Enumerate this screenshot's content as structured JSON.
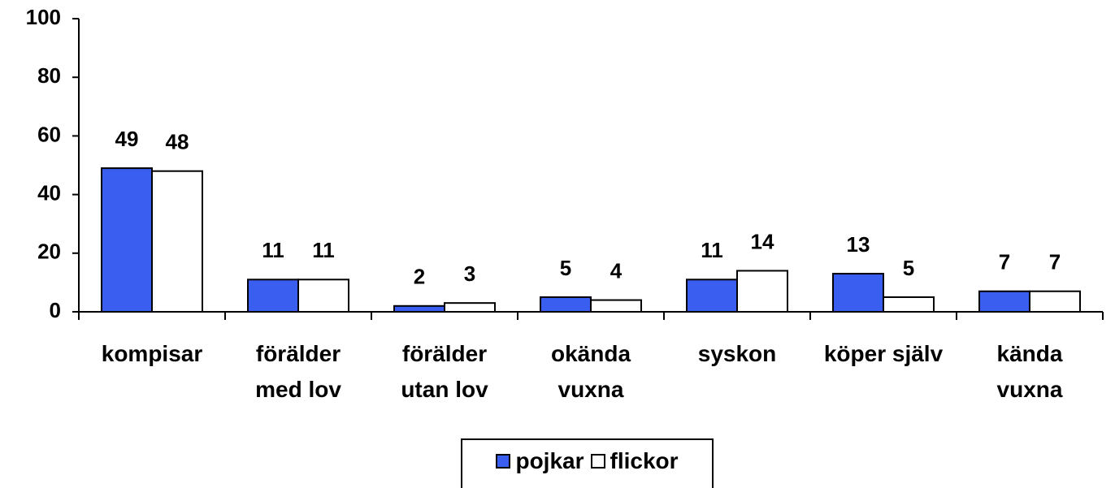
{
  "chart_data": {
    "type": "bar",
    "categories": [
      "kompisar",
      "förälder med lov",
      "förälder utan lov",
      "okända vuxna",
      "syskon",
      "köper själv",
      "kända vuxna"
    ],
    "series": [
      {
        "name": "pojkar",
        "color": "#3a5ff0",
        "values": [
          49,
          11,
          2,
          5,
          11,
          13,
          7
        ]
      },
      {
        "name": "flickor",
        "color": "#ffffff",
        "values": [
          48,
          11,
          3,
          4,
          14,
          5,
          7
        ]
      }
    ],
    "ylim": [
      0,
      100
    ],
    "yticks": [
      0,
      20,
      40,
      60,
      80,
      100
    ],
    "legend": "bottom"
  }
}
